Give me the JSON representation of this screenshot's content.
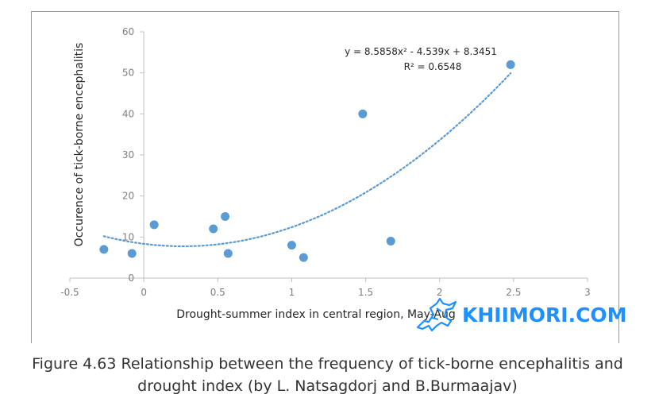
{
  "chart_data": {
    "type": "scatter",
    "xlabel": "Drought-summer index in central region, May-Aug",
    "ylabel": "Occurence of tick-borne encephalitis",
    "xlim": [
      -0.5,
      3
    ],
    "ylim": [
      0,
      60
    ],
    "x_ticks": [
      "-0.5",
      "0",
      "0.5",
      "1",
      "1.5",
      "2",
      "2.5",
      "3"
    ],
    "y_ticks": [
      "0",
      "10",
      "20",
      "30",
      "40",
      "50",
      "60"
    ],
    "grid": false,
    "points": [
      {
        "x": -0.27,
        "y": 7
      },
      {
        "x": -0.08,
        "y": 6
      },
      {
        "x": 0.07,
        "y": 13
      },
      {
        "x": 0.47,
        "y": 12
      },
      {
        "x": 0.55,
        "y": 15
      },
      {
        "x": 0.57,
        "y": 6
      },
      {
        "x": 1.0,
        "y": 8
      },
      {
        "x": 1.08,
        "y": 5
      },
      {
        "x": 1.48,
        "y": 40
      },
      {
        "x": 1.67,
        "y": 9
      },
      {
        "x": 2.48,
        "y": 52
      }
    ],
    "trendline": {
      "type": "polynomial",
      "coefficients": [
        8.5858,
        -4.539,
        8.3451
      ],
      "x_range": [
        -0.27,
        2.48
      ],
      "equation": "y = 8.5858x² - 4.539x + 8.3451",
      "r_squared": "R² = 0.6548"
    },
    "marker_color": "#5b9bd5",
    "trend_color": "#5b9bd5"
  },
  "caption": {
    "line1": "Figure 4.63 Relationship between the frequency of tick-borne encephalitis and",
    "line2": "drought index (by L. Natsagdorj and B.Burmaajav)"
  },
  "watermark": {
    "text": "KHIIMORI.COM",
    "icon": "horse-icon",
    "color": "#1e90ff"
  }
}
